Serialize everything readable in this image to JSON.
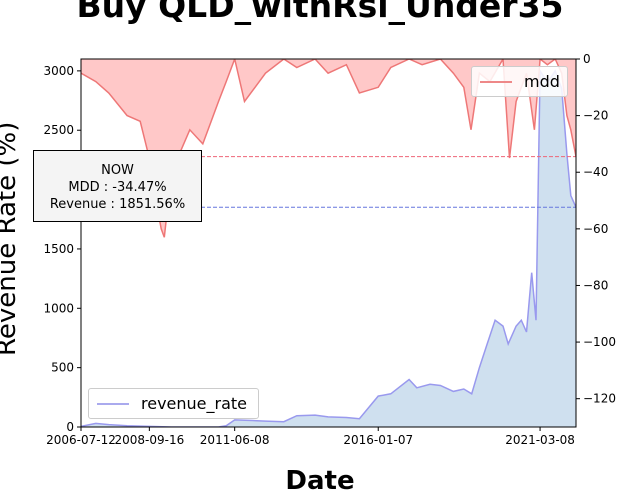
{
  "chart_data": {
    "type": "area",
    "title": "Buy QLD_withRsi_Under35",
    "xlabel": "Date",
    "ylabel": "Revenue Rate (%)",
    "x_ticks": [
      "2006-07-12",
      "2008-09-16",
      "2011-06-08",
      "2016-01-07",
      "2021-03-08"
    ],
    "y_left": {
      "lim": [
        0,
        3100
      ],
      "ticks": [
        0,
        500,
        1000,
        1500,
        2000,
        2500,
        3000
      ]
    },
    "y_right": {
      "lim": [
        -130,
        0
      ],
      "ticks": [
        0,
        -20,
        -40,
        -60,
        -80,
        -100,
        -120
      ]
    },
    "legend_left": {
      "label": "revenue_rate",
      "placement": "lower-left"
    },
    "legend_right": {
      "label": "mdd",
      "placement": "upper-right"
    },
    "colors": {
      "revenue_line": "#9999ee",
      "revenue_fill": "#cfe0ef",
      "mdd_line": "#ee7777",
      "mdd_fill": "#ffc8c8",
      "now_mdd_line": "#ee6677",
      "now_revenue_line": "#6677dd"
    },
    "annotation": {
      "heading": "NOW",
      "mdd_text": "MDD : -34.47%",
      "revenue_text": "Revenue : 1851.56%",
      "mdd_value": -34.47,
      "revenue_value": 1851.56
    },
    "series": [
      {
        "name": "revenue_rate",
        "axis": "left",
        "x": [
          "2006-07-12",
          "2007-01-01",
          "2007-06-01",
          "2008-01-01",
          "2008-09-16",
          "2009-06-01",
          "2010-03-01",
          "2010-12-01",
          "2011-03-01",
          "2011-06-08",
          "2012-01-01",
          "2012-06-01",
          "2013-01-01",
          "2013-06-01",
          "2014-01-01",
          "2014-06-01",
          "2015-01-01",
          "2015-06-01",
          "2016-01-07",
          "2016-06-01",
          "2017-01-01",
          "2017-04-01",
          "2017-09-01",
          "2018-01-01",
          "2018-06-01",
          "2018-10-01",
          "2019-01-01",
          "2019-04-01",
          "2019-07-01",
          "2019-10-01",
          "2020-01-01",
          "2020-03-01",
          "2020-06-01",
          "2020-08-01",
          "2020-10-01",
          "2020-12-01",
          "2021-01-20",
          "2021-03-08",
          "2021-06-01",
          "2021-09-01",
          "2021-11-15",
          "2022-01-15",
          "2022-03-01",
          "2022-05-01"
        ],
        "y": [
          5,
          30,
          20,
          10,
          5,
          0,
          0,
          0,
          10,
          60,
          55,
          50,
          45,
          95,
          100,
          85,
          80,
          70,
          260,
          280,
          400,
          330,
          360,
          350,
          300,
          320,
          280,
          500,
          700,
          900,
          850,
          700,
          850,
          900,
          800,
          1300,
          900,
          3000,
          2900,
          3000,
          2850,
          2300,
          1950,
          1850
        ]
      },
      {
        "name": "mdd",
        "axis": "right",
        "x": [
          "2006-07-12",
          "2007-01-01",
          "2007-06-01",
          "2008-01-01",
          "2008-06-01",
          "2008-09-16",
          "2008-12-01",
          "2009-02-01",
          "2009-03-09",
          "2009-06-01",
          "2010-01-01",
          "2010-06-01",
          "2010-12-01",
          "2011-03-01",
          "2011-06-08",
          "2011-10-01",
          "2012-06-01",
          "2013-01-01",
          "2013-06-01",
          "2014-01-01",
          "2014-06-01",
          "2015-01-01",
          "2015-06-01",
          "2016-01-07",
          "2016-06-01",
          "2017-01-01",
          "2017-06-01",
          "2018-01-01",
          "2018-06-01",
          "2018-10-01",
          "2018-12-24",
          "2019-04-01",
          "2019-08-01",
          "2020-01-01",
          "2020-03-16",
          "2020-06-01",
          "2020-10-01",
          "2021-01-01",
          "2021-03-08",
          "2021-06-01",
          "2021-09-01",
          "2021-11-15",
          "2022-01-15",
          "2022-03-01",
          "2022-05-01"
        ],
        "y": [
          -5,
          -8,
          -12,
          -20,
          -22,
          -35,
          -50,
          -60,
          -63,
          -40,
          -25,
          -30,
          -15,
          -8,
          0,
          -15,
          -5,
          0,
          -3,
          0,
          -5,
          -2,
          -12,
          -10,
          -3,
          0,
          -2,
          0,
          -5,
          -10,
          -25,
          -5,
          -8,
          0,
          -35,
          -15,
          -5,
          -25,
          0,
          -2,
          0,
          -5,
          -20,
          -25,
          -34.47
        ]
      }
    ]
  }
}
